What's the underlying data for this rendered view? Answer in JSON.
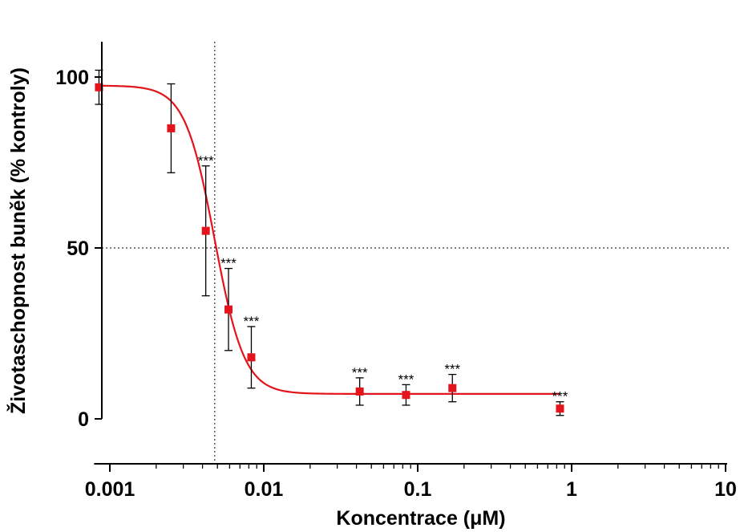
{
  "chart_data": {
    "type": "scatter",
    "title": "",
    "xlabel": "Koncentrace (μM)",
    "ylabel": "Životaschopnost buněk (% kontroly)",
    "x_scale": "log",
    "xlim": [
      0.00079,
      1.1
    ],
    "ylim": [
      -5,
      110
    ],
    "x_ticks": [
      0.001,
      0.01,
      0.1,
      1,
      10
    ],
    "x_tick_labels": [
      "0.001",
      "0.01",
      "0.1",
      "1",
      "10"
    ],
    "y_ticks": [
      0,
      50,
      100
    ],
    "y_tick_labels": [
      "0",
      "50",
      "100"
    ],
    "grid": false,
    "reference_lines": {
      "x": 0.0048,
      "y": 50
    },
    "series": [
      {
        "color": "#e3141b",
        "points": [
          {
            "x": 0.00085,
            "y": 97,
            "err": 5,
            "sig": ""
          },
          {
            "x": 0.0025,
            "y": 85,
            "err": 13,
            "sig": ""
          },
          {
            "x": 0.0042,
            "y": 55,
            "err": 19,
            "sig": "***"
          },
          {
            "x": 0.0059,
            "y": 32,
            "err": 12,
            "sig": "***"
          },
          {
            "x": 0.0083,
            "y": 18,
            "err": 9,
            "sig": "***"
          },
          {
            "x": 0.042,
            "y": 8,
            "err": 4,
            "sig": "***"
          },
          {
            "x": 0.084,
            "y": 7,
            "err": 3,
            "sig": "***"
          },
          {
            "x": 0.168,
            "y": 9,
            "err": 4,
            "sig": "***"
          },
          {
            "x": 0.84,
            "y": 3,
            "err": 2,
            "sig": "***"
          }
        ],
        "fit": {
          "model": "sigmoidal dose-response",
          "top": 97.5,
          "bottom": 7.3,
          "ic50": 0.0048,
          "hill": 4.5
        }
      }
    ]
  }
}
